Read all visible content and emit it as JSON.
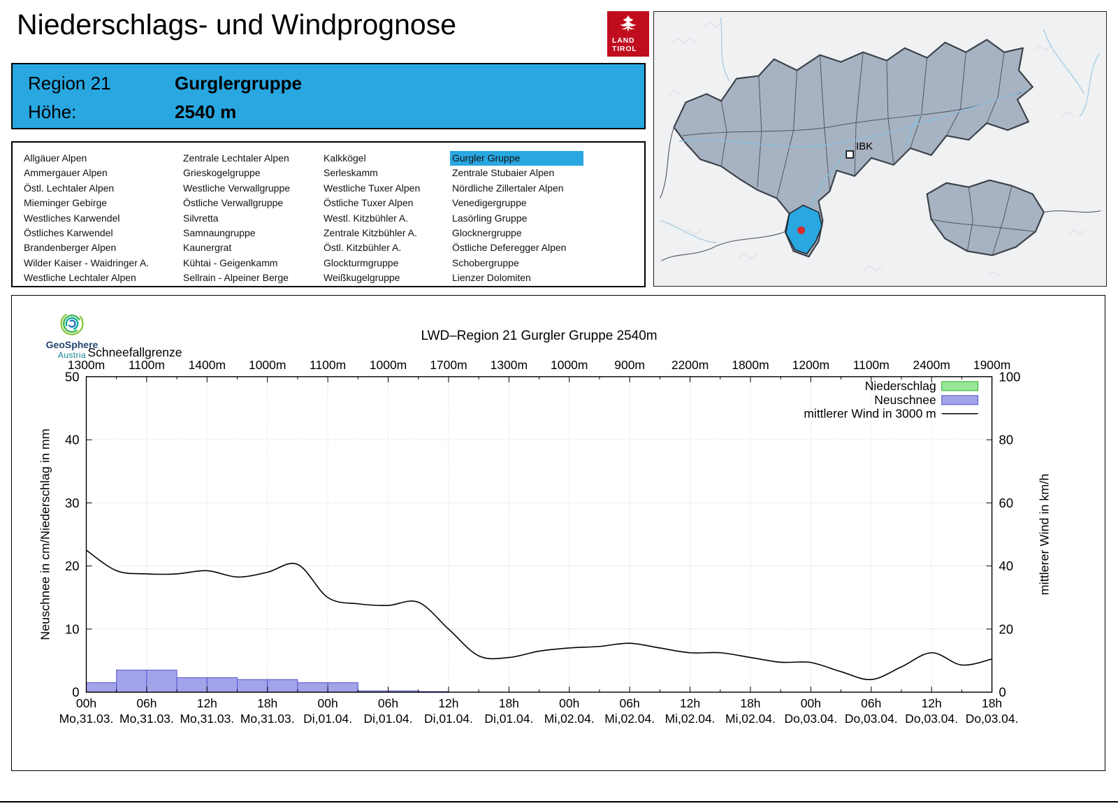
{
  "header": {
    "title": "Niederschlags- und Windprognose",
    "logo": {
      "line1": "LAND",
      "line2": "TIROL"
    }
  },
  "region_box": {
    "region_label": "Region 21",
    "region_name": "Gurglergruppe",
    "altitude_label": "Höhe:",
    "altitude_value": "2540 m"
  },
  "region_list": {
    "selected": "Gurgler Gruppe",
    "columns": [
      [
        "Allgäuer Alpen",
        "Ammergauer Alpen",
        "Östl. Lechtaler Alpen",
        "Mieminger Gebirge",
        "Westliches Karwendel",
        "Östliches Karwendel",
        "Brandenberger Alpen",
        "Wilder Kaiser - Waidringer A.",
        "Westliche Lechtaler Alpen"
      ],
      [
        "Zentrale Lechtaler Alpen",
        "Grieskogelgruppe",
        "Westliche Verwallgruppe",
        "Östliche Verwallgruppe",
        "Silvretta",
        "Samnaungruppe",
        "Kaunergrat",
        "Kühtai - Geigenkamm",
        "Sellrain - Alpeiner Berge"
      ],
      [
        "Kalkkögel",
        "Serleskamm",
        "Westliche Tuxer Alpen",
        "Östliche Tuxer Alpen",
        "Westl. Kitzbühler A.",
        "Zentrale Kitzbühler A.",
        "Östl. Kitzbühler A.",
        "Glockturmgruppe",
        "Weißkugelgruppe"
      ],
      [
        "Gurgler Gruppe",
        "Zentrale Stubaier Alpen",
        "Nördliche Zillertaler Alpen",
        "Venedigergruppe",
        "Lasörling Gruppe",
        "Glocknergruppe",
        "Östliche Deferegger Alpen",
        "Schobergruppe",
        "Lienzer Dolomiten"
      ]
    ]
  },
  "map": {
    "city_label": "IBK"
  },
  "geosphere": {
    "name": "GeoSphere",
    "sub": "Austria"
  },
  "colors": {
    "accent": "#29A7E1",
    "brand_red": "#C00D1E",
    "map_region_fill": "#A7B3C3",
    "map_selected": "#29A7E1",
    "marker_red": "#D62C2C",
    "precip_fill": "#98E698",
    "precip_stroke": "#2EAF2E",
    "snow_fill": "#A3A3EA",
    "snow_stroke": "#5353CD",
    "wind_line": "#000000",
    "grid": "#C5C5C5"
  },
  "chart_data": {
    "type": "mixed",
    "title": "LWD–Region 21 Gurgler Gruppe 2540m",
    "snowline_label": "Schneefallgrenze",
    "snowline_values": [
      "1300m",
      "1100m",
      "1400m",
      "1000m",
      "1100m",
      "1000m",
      "1700m",
      "1300m",
      "1000m",
      "900m",
      "2200m",
      "1800m",
      "1200m",
      "1100m",
      "2400m",
      "1900m"
    ],
    "ylabel_left": "Neuschnee in cm/Niederschlag in mm",
    "ylabel_right": "mittlerer Wind in km/h",
    "ylim_left": [
      0,
      50
    ],
    "ylim_right": [
      0,
      100
    ],
    "yticks_left": [
      0,
      10,
      20,
      30,
      40,
      50
    ],
    "yticks_right": [
      0,
      20,
      40,
      60,
      80,
      100
    ],
    "x_hours_range": [
      0,
      90
    ],
    "x_tick_step_h": 6,
    "xticks": [
      {
        "hour": "00h",
        "date": "Mo,31.03."
      },
      {
        "hour": "06h",
        "date": "Mo,31.03."
      },
      {
        "hour": "12h",
        "date": "Mo,31.03."
      },
      {
        "hour": "18h",
        "date": "Mo,31.03."
      },
      {
        "hour": "00h",
        "date": "Di,01.04."
      },
      {
        "hour": "06h",
        "date": "Di,01.04."
      },
      {
        "hour": "12h",
        "date": "Di,01.04."
      },
      {
        "hour": "18h",
        "date": "Di,01.04."
      },
      {
        "hour": "00h",
        "date": "Mi,02.04."
      },
      {
        "hour": "06h",
        "date": "Mi,02.04."
      },
      {
        "hour": "12h",
        "date": "Mi,02.04."
      },
      {
        "hour": "18h",
        "date": "Mi,02.04."
      },
      {
        "hour": "00h",
        "date": "Do,03.04."
      },
      {
        "hour": "06h",
        "date": "Do,03.04."
      },
      {
        "hour": "12h",
        "date": "Do,03.04."
      },
      {
        "hour": "18h",
        "date": "Do,03.04."
      }
    ],
    "legend": [
      {
        "label": "Niederschlag",
        "kind": "bar",
        "color_key": "precip"
      },
      {
        "label": "Neuschnee",
        "kind": "bar",
        "color_key": "snow"
      },
      {
        "label": "mittlerer Wind in 3000 m",
        "kind": "line",
        "color_key": "wind"
      }
    ],
    "neuschnee_cm": {
      "interval_h": 3,
      "values": [
        1.5,
        3.5,
        3.5,
        2.3,
        2.3,
        2,
        2,
        1.5,
        1.5,
        0.2,
        0.2,
        0.1,
        0,
        0,
        0,
        0,
        0,
        0,
        0,
        0,
        0,
        0,
        0,
        0,
        0,
        0,
        0,
        0,
        0,
        0
      ]
    },
    "niederschlag_mm": {
      "interval_h": 3,
      "values": [
        0,
        0,
        0,
        0,
        0,
        0,
        0,
        0,
        0,
        0,
        0,
        0,
        0,
        0,
        0,
        0,
        0,
        0,
        0,
        0,
        0,
        0,
        0,
        0,
        0,
        0,
        0,
        0,
        0,
        0
      ]
    },
    "wind_kmh": {
      "step_h": 3,
      "values": [
        45,
        38.5,
        37.5,
        37.5,
        38.5,
        36.5,
        38,
        40.5,
        30,
        28,
        27.5,
        28.5,
        20,
        11.5,
        11,
        13,
        14,
        14.5,
        15.5,
        14,
        12.5,
        12.5,
        11,
        9.5,
        9.4,
        6.5,
        4,
        8,
        12.5,
        8.6,
        10.5
      ]
    }
  }
}
